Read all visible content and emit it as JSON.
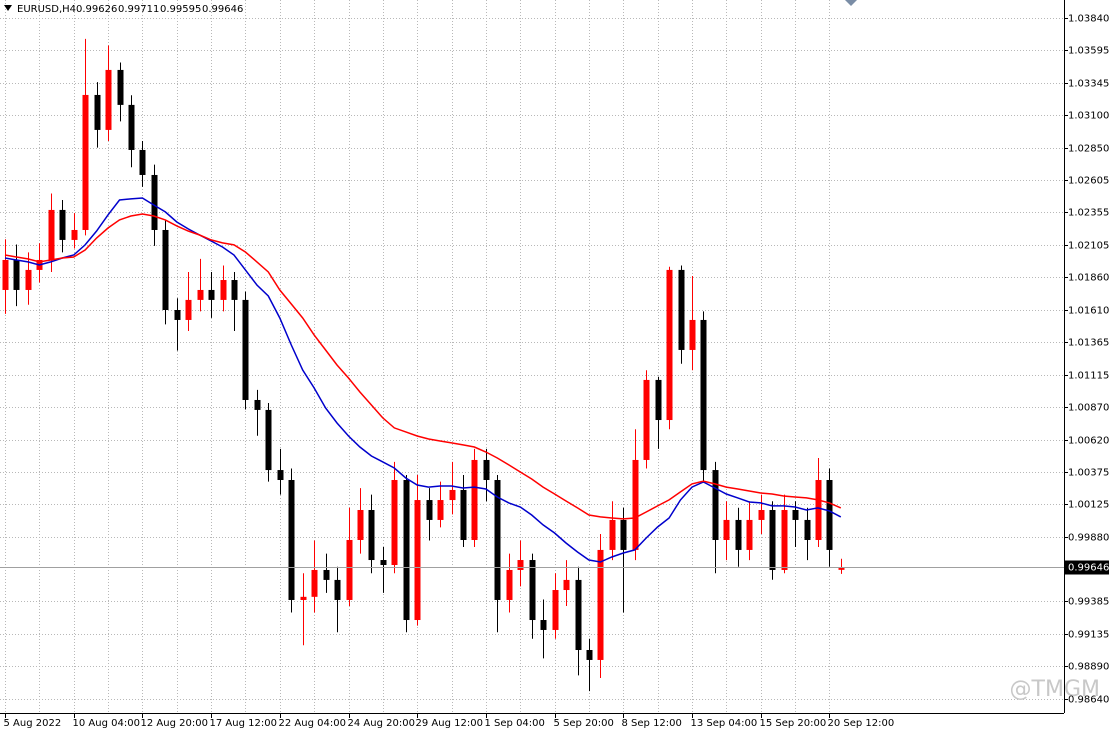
{
  "chart_data": {
    "type": "candlestick",
    "symbol": "EURUSD,H4",
    "watermark": "@TMGM",
    "categories": [
      "5 Aug 2022",
      null,
      null,
      null,
      null,
      null,
      "10 Aug 04:00",
      null,
      null,
      null,
      null,
      null,
      "12 Aug 20:00",
      null,
      null,
      null,
      null,
      null,
      "17 Aug 12:00",
      null,
      null,
      null,
      null,
      null,
      "22 Aug 04:00",
      null,
      null,
      null,
      null,
      null,
      "24 Aug 20:00",
      null,
      null,
      null,
      null,
      null,
      "29 Aug 12:00",
      null,
      null,
      null,
      null,
      null,
      "1 Sep 04:00",
      null,
      null,
      null,
      null,
      null,
      "5 Sep 20:00",
      null,
      null,
      null,
      null,
      null,
      "8 Sep 12:00",
      null,
      null,
      null,
      null,
      null,
      "13 Sep 04:00",
      null,
      null,
      null,
      null,
      null,
      "15 Sep 20:00",
      null,
      null,
      null,
      null,
      null,
      "20 Sep 12:00",
      null
    ],
    "open": [
      1.01763,
      1.01992,
      1.01763,
      1.01916,
      1.01992,
      1.02374,
      1.02145,
      1.02221,
      1.03252,
      1.02985,
      1.03443,
      1.03176,
      1.02832,
      1.02641,
      1.02221,
      1.0161,
      1.01534,
      1.01687,
      1.01763,
      1.01687,
      1.01839,
      1.01687,
      1.00923,
      1.00847,
      1.00388,
      1.00312,
      0.99396,
      0.9942,
      0.99625,
      0.99549,
      0.99396,
      0.99854,
      1.00083,
      0.99701,
      0.99663,
      1.00312,
      0.99243,
      1.00159,
      1.00007,
      1.00159,
      1.00236,
      0.99854,
      1.00465,
      1.00312,
      0.99396,
      0.99625,
      0.99701,
      0.99243,
      0.99167,
      0.99472,
      0.99549,
      0.99014,
      0.98938,
      0.99778,
      1.00007,
      0.99778,
      1.00465,
      1.01076,
      1.0077,
      1.01916,
      1.01305,
      1.01534,
      1.00388,
      0.99854,
      1.00007,
      0.99778,
      1.00007,
      1.00083,
      0.99625,
      1.00083,
      1.00007,
      0.99854,
      1.00312,
      0.99626
    ],
    "high": [
      1.0215,
      1.0211,
      1.0205,
      1.0212,
      1.025,
      1.0245,
      1.0235,
      1.0368,
      1.0335,
      1.0363,
      1.035,
      1.0325,
      1.029,
      1.0272,
      1.023,
      1.017,
      1.019,
      1.02,
      1.019,
      1.0195,
      1.019,
      1.0175,
      1.01,
      1.009,
      1.0055,
      1.004,
      0.996,
      0.9985,
      0.9975,
      0.9965,
      1.001,
      1.0025,
      1.002,
      0.998,
      1.0045,
      1.0035,
      1.0035,
      1.0025,
      1.003,
      1.0045,
      1.0035,
      1.0055,
      1.0055,
      1.0035,
      0.9975,
      0.9985,
      0.9975,
      0.994,
      0.996,
      0.997,
      0.9965,
      0.991,
      0.999,
      1.0015,
      1.001,
      1.007,
      1.0115,
      1.011,
      1.0194,
      1.0195,
      1.0187,
      1.016,
      1.0045,
      1.0015,
      1.001,
      1.0015,
      1.002,
      1.0015,
      1.002,
      1.0015,
      1.001,
      1.0048,
      1.004,
      0.99711
    ],
    "low": [
      1.0158,
      1.0164,
      1.0165,
      1.0182,
      1.019,
      1.0205,
      1.0208,
      1.0218,
      1.0285,
      1.029,
      1.0305,
      1.027,
      1.0255,
      1.021,
      1.015,
      1.013,
      1.0145,
      1.016,
      1.0155,
      1.016,
      1.0145,
      1.0085,
      1.0065,
      1.003,
      1.002,
      0.993,
      0.9905,
      0.993,
      0.9945,
      0.9915,
      0.9935,
      0.9975,
      0.996,
      0.9945,
      0.996,
      0.9915,
      0.992,
      0.9985,
      0.9995,
      1.0005,
      0.998,
      0.998,
      1.0015,
      0.9915,
      0.993,
      0.995,
      0.991,
      0.9895,
      0.991,
      0.9935,
      0.9882,
      0.987,
      0.988,
      0.997,
      0.993,
      0.997,
      1.004,
      1.0055,
      1.007,
      1.012,
      1.0115,
      1.003,
      0.996,
      0.997,
      0.9965,
      0.997,
      0.999,
      0.9955,
      0.996,
      0.998,
      0.997,
      0.998,
      0.9965,
      0.99595
    ],
    "close": [
      1.01992,
      1.01763,
      1.01916,
      1.01992,
      1.02374,
      1.02145,
      1.02221,
      1.03252,
      1.02985,
      1.03443,
      1.03176,
      1.02832,
      1.02641,
      1.02221,
      1.0161,
      1.01534,
      1.01687,
      1.01763,
      1.01687,
      1.01839,
      1.01687,
      1.00923,
      1.00847,
      1.00388,
      1.00312,
      0.99396,
      0.9942,
      0.99625,
      0.99549,
      0.99396,
      0.99854,
      1.00083,
      0.99701,
      0.99663,
      1.00312,
      0.99243,
      1.00159,
      1.00007,
      1.00159,
      1.00236,
      0.99854,
      1.00465,
      1.00312,
      0.99396,
      0.99625,
      0.99701,
      0.99243,
      0.99167,
      0.99472,
      0.99549,
      0.99014,
      0.98938,
      0.99778,
      1.00007,
      0.99778,
      1.00465,
      1.01076,
      1.0077,
      1.01916,
      1.01305,
      1.01534,
      1.00388,
      0.99854,
      1.00007,
      0.99778,
      1.00007,
      1.00083,
      0.99625,
      1.00083,
      1.00007,
      0.99854,
      1.00312,
      0.99778,
      0.99646
    ],
    "up_color": "#ff0000",
    "down_color": "#000000",
    "lines": [
      {
        "color": "#0000cc",
        "values": [
          1.02007,
          1.01992,
          1.01977,
          1.01954,
          1.01977,
          1.02007,
          1.0203,
          1.02107,
          1.02213,
          1.02336,
          1.0245,
          1.02458,
          1.02465,
          1.02412,
          1.02359,
          1.02282,
          1.02229,
          1.02183,
          1.02137,
          1.02091,
          1.0203,
          1.01916,
          1.01801,
          1.01717,
          1.01549,
          1.01343,
          1.01152,
          1.01015,
          1.00862,
          1.00747,
          1.00648,
          1.00564,
          1.00495,
          1.0045,
          1.00404,
          1.00327,
          1.00274,
          1.00258,
          1.00266,
          1.00266,
          1.00251,
          1.00258,
          1.00243,
          1.00182,
          1.00137,
          1.00106,
          1.00045,
          0.99969,
          0.99907,
          0.99831,
          0.99762,
          0.99701,
          0.99686,
          0.99724,
          0.99755,
          0.99778,
          0.99869,
          0.99953,
          1.00022,
          1.0016,
          1.00258,
          1.00297,
          1.00251,
          1.00205,
          1.00175,
          1.00144,
          1.00137,
          1.00114,
          1.00114,
          1.00106,
          1.00083,
          1.00099,
          1.00076,
          1.0003
        ]
      },
      {
        "color": "#ff0000",
        "values": [
          1.0203,
          1.02015,
          1.02,
          1.01977,
          1.01992,
          1.02007,
          1.02015,
          1.02068,
          1.0216,
          1.02236,
          1.02298,
          1.02328,
          1.02343,
          1.02328,
          1.02298,
          1.02252,
          1.02213,
          1.02183,
          1.02145,
          1.02122,
          1.02107,
          1.02053,
          1.01977,
          1.019,
          1.01763,
          1.01656,
          1.01549,
          1.0142,
          1.01305,
          1.0119,
          1.01091,
          1.00984,
          1.00885,
          1.00786,
          1.0071,
          1.00679,
          1.00648,
          1.00625,
          1.0061,
          1.00595,
          1.0058,
          1.00564,
          1.00526,
          1.0048,
          1.00427,
          1.00373,
          1.0032,
          1.00258,
          1.00205,
          1.00152,
          1.00099,
          1.00045,
          1.0003,
          1.00022,
          1.00015,
          1.00022,
          1.00068,
          1.00114,
          1.0016,
          1.00221,
          1.00282,
          1.00304,
          1.00282,
          1.00258,
          1.00243,
          1.00228,
          1.00213,
          1.00205,
          1.0019,
          1.00182,
          1.00175,
          1.0016,
          1.00137,
          1.00099
        ]
      }
    ],
    "ylim": [
      0.98533,
      1.03977
    ],
    "yticks": [
      {
        "value": 1.0384,
        "label": "1.03840"
      },
      {
        "value": 1.03595,
        "label": "1.03595"
      },
      {
        "value": 1.03345,
        "label": "1.03345"
      },
      {
        "value": 1.031,
        "label": "1.03100"
      },
      {
        "value": 1.0285,
        "label": "1.02850"
      },
      {
        "value": 1.02605,
        "label": "1.02605"
      },
      {
        "value": 1.02355,
        "label": "1.02355"
      },
      {
        "value": 1.02105,
        "label": "1.02105"
      },
      {
        "value": 1.0186,
        "label": "1.01860"
      },
      {
        "value": 1.0161,
        "label": "1.01610"
      },
      {
        "value": 1.01365,
        "label": "1.01365"
      },
      {
        "value": 1.01115,
        "label": "1.01115"
      },
      {
        "value": 1.0087,
        "label": "1.00870"
      },
      {
        "value": 1.0062,
        "label": "1.00620"
      },
      {
        "value": 1.00375,
        "label": "1.00375"
      },
      {
        "value": 1.00125,
        "label": "1.00125"
      },
      {
        "value": 0.9988,
        "label": "0.99880"
      },
      {
        "value": 0.99385,
        "label": "0.99385"
      },
      {
        "value": 0.99135,
        "label": "0.99135"
      },
      {
        "value": 0.9889,
        "label": "0.98890"
      },
      {
        "value": 0.9864,
        "label": "0.98640"
      }
    ],
    "grid": true
  }
}
